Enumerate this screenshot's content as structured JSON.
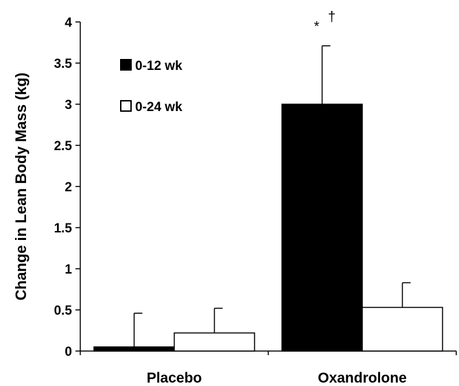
{
  "chart_data": {
    "type": "bar",
    "categories": [
      "Placebo",
      "Oxandrolone"
    ],
    "series": [
      {
        "name": "0-12 wk",
        "values": [
          0.05,
          3.0
        ],
        "error": [
          0.41,
          0.71
        ],
        "fill": "#000000"
      },
      {
        "name": "0-24 wk",
        "values": [
          0.22,
          0.53
        ],
        "error": [
          0.3,
          0.3
        ],
        "fill": "#ffffff"
      }
    ],
    "ylabel": "Change in Lean Body Mass (kg)",
    "xlabel": "",
    "ylim": [
      0,
      4
    ],
    "yticks": [
      0,
      0.5,
      1,
      1.5,
      2,
      2.5,
      3,
      3.5,
      4
    ],
    "ytick_labels": [
      "0",
      "0.5",
      "1",
      "1.5",
      "2",
      "2.5",
      "3",
      "3.5",
      "4"
    ],
    "annotations": [
      {
        "text": "*",
        "category": "Oxandrolone",
        "series": "0-12 wk",
        "superscript": false
      },
      {
        "text": "†",
        "category": "Oxandrolone",
        "series": "0-12 wk",
        "superscript": true
      }
    ],
    "legend_position": "top-left",
    "grid": false
  }
}
